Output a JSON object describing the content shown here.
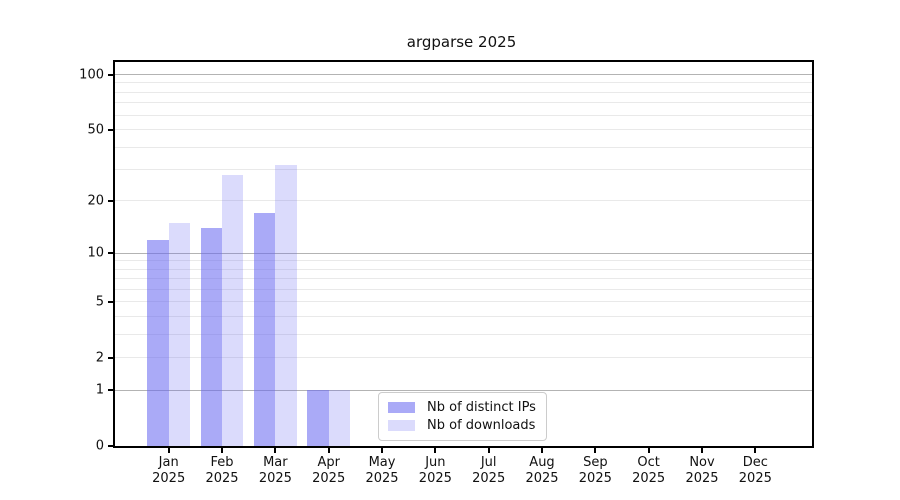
{
  "chart_data": {
    "type": "bar",
    "title": "argparse 2025",
    "categories": [
      {
        "month": "Jan",
        "year": "2025"
      },
      {
        "month": "Feb",
        "year": "2025"
      },
      {
        "month": "Mar",
        "year": "2025"
      },
      {
        "month": "Apr",
        "year": "2025"
      },
      {
        "month": "May",
        "year": "2025"
      },
      {
        "month": "Jun",
        "year": "2025"
      },
      {
        "month": "Jul",
        "year": "2025"
      },
      {
        "month": "Aug",
        "year": "2025"
      },
      {
        "month": "Sep",
        "year": "2025"
      },
      {
        "month": "Oct",
        "year": "2025"
      },
      {
        "month": "Nov",
        "year": "2025"
      },
      {
        "month": "Dec",
        "year": "2025"
      }
    ],
    "series": [
      {
        "name": "Nb of distinct IPs",
        "color": "rgba(100,100,240,0.55)",
        "values": [
          12,
          14,
          17,
          1,
          0,
          0,
          0,
          0,
          0,
          0,
          0,
          0
        ]
      },
      {
        "name": "Nb of downloads",
        "color": "rgba(100,100,240,0.23)",
        "values": [
          15,
          28,
          32,
          1,
          0,
          0,
          0,
          0,
          0,
          0,
          0,
          0
        ]
      }
    ],
    "yscale": "log10(1+x)",
    "ylim": [
      0,
      117
    ],
    "yticks": [
      0,
      1,
      2,
      5,
      10,
      20,
      50,
      100
    ],
    "major_grid_values": [
      1,
      10,
      100
    ],
    "minor_grid_values": [
      2,
      3,
      4,
      5,
      6,
      7,
      8,
      9,
      20,
      30,
      40,
      50,
      60,
      70,
      80,
      90
    ],
    "grid": true,
    "legend_position": "inside-bottom-center"
  },
  "colors": {
    "bar_distinct_ips": "rgba(100,100,240,0.55)",
    "bar_downloads": "rgba(100,100,240,0.23)",
    "major_grid": "#b3b3b3",
    "minor_grid": "#e9e9e9",
    "spine": "#000000",
    "text": "#111111",
    "legend_border": "#cccccc",
    "background": "#ffffff"
  }
}
